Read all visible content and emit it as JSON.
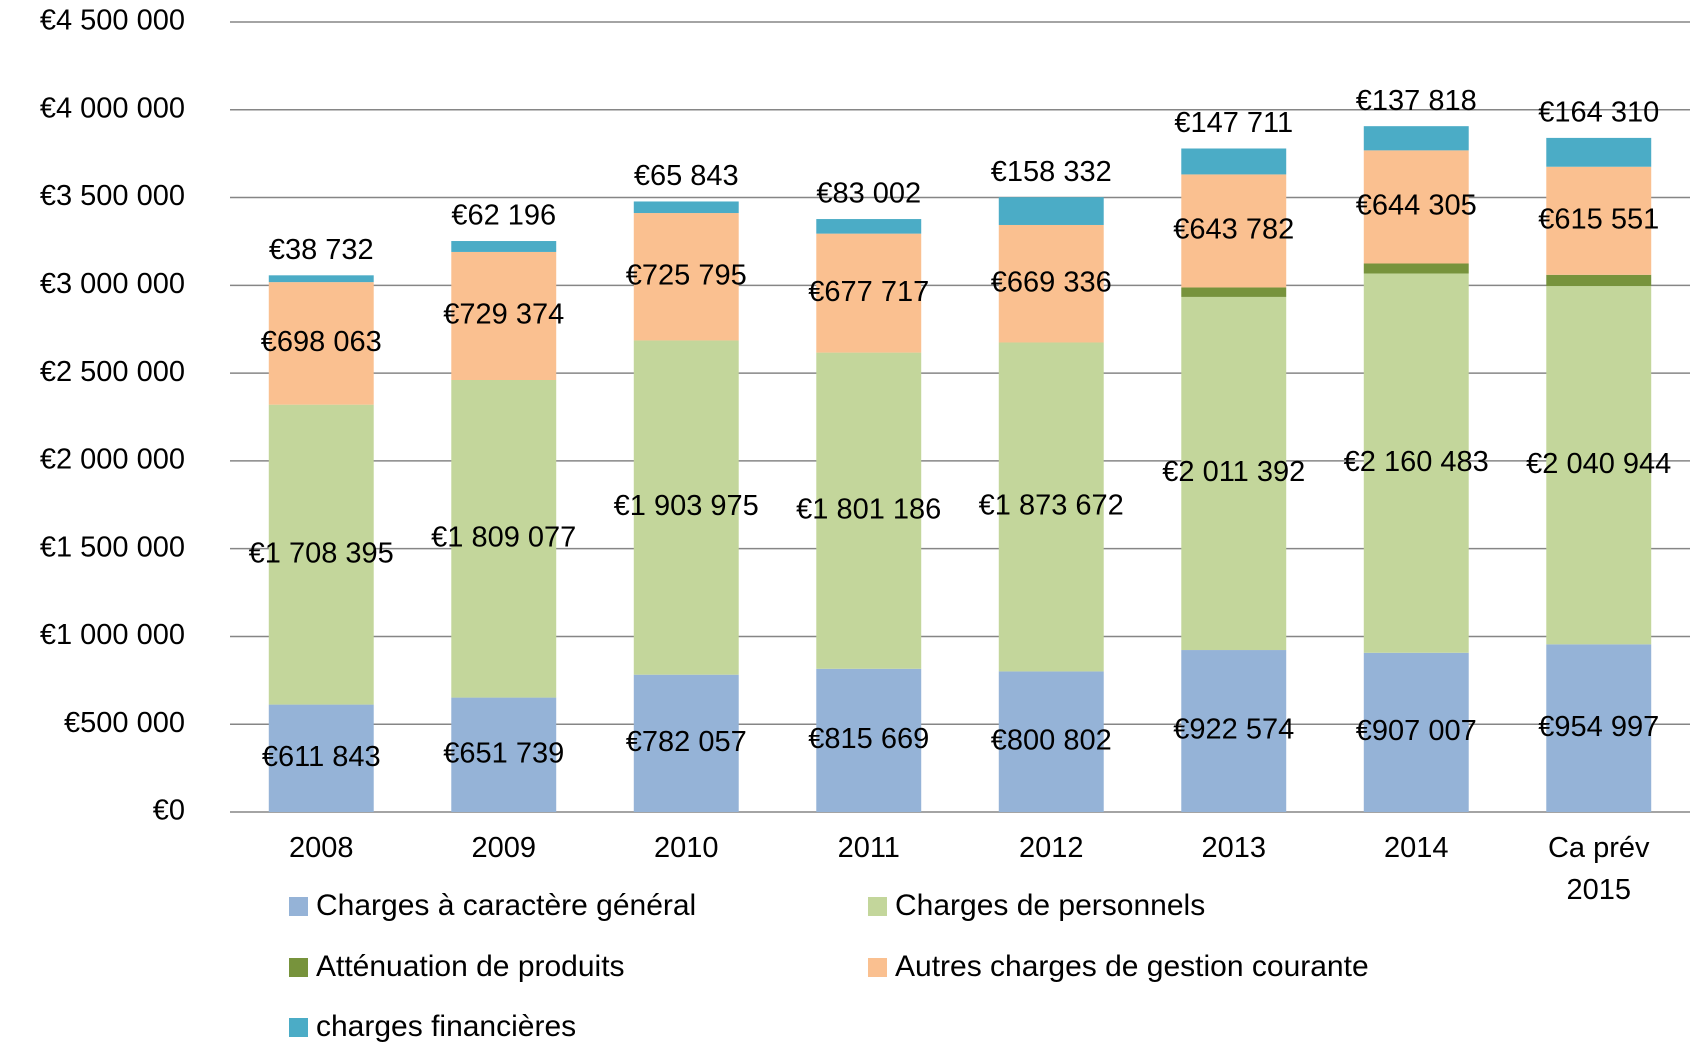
{
  "chart_data": {
    "type": "stacked_bar",
    "categories": [
      "2008",
      "2009",
      "2010",
      "2011",
      "2012",
      "2013",
      "2014",
      "Ca prév 2015"
    ],
    "series": [
      {
        "name": "Charges à caractère général",
        "color": "#95b3d7",
        "values": [
          611843,
          651739,
          782057,
          815669,
          800802,
          922574,
          907007,
          954997
        ],
        "value_labels": [
          "€611 843",
          "€651 739",
          "€782 057",
          "€815 669",
          "€800 802",
          "€922 574",
          "€907 007",
          "€954 997"
        ]
      },
      {
        "name": "Charges de personnels",
        "color": "#c3d69b",
        "values": [
          1708395,
          1809077,
          1903975,
          1801186,
          1873672,
          2011392,
          2160483,
          2040944
        ],
        "value_labels": [
          "€1 708 395",
          "€1 809 077",
          "€1 903 975",
          "€1 801 186",
          "€1 873 672",
          "€2 011 392",
          "€2 160 483",
          "€2 040 944"
        ]
      },
      {
        "name": "Atténuation de produits",
        "color": "#77933c",
        "values": [
          0,
          0,
          0,
          0,
          0,
          54000,
          57000,
          64000
        ]
      },
      {
        "name": "Autres charges de gestion courante",
        "color": "#fac090",
        "values": [
          698063,
          729374,
          725795,
          677717,
          669336,
          643782,
          644305,
          615551
        ],
        "value_labels": [
          "€698 063",
          "€729 374",
          "€725 795",
          "€677 717",
          "€669 336",
          "€643 782",
          "€644 305",
          "€615 551"
        ]
      },
      {
        "name": "charges financières",
        "color": "#4bacc6",
        "values": [
          38732,
          62196,
          65843,
          83002,
          158332,
          147711,
          137818,
          164310
        ],
        "value_labels": [
          "€38 732",
          "€62 196",
          "€65 843",
          "€83 002",
          "€158 332",
          "€147 711",
          "€137 818",
          "€164 310"
        ]
      }
    ],
    "ylim": [
      0,
      4500000
    ],
    "yticks": [
      {
        "value": 0,
        "label": "€0"
      },
      {
        "value": 500000,
        "label": "€500 000"
      },
      {
        "value": 1000000,
        "label": "€1 000 000"
      },
      {
        "value": 1500000,
        "label": "€1 500 000"
      },
      {
        "value": 2000000,
        "label": "€2 000 000"
      },
      {
        "value": 2500000,
        "label": "€2 500 000"
      },
      {
        "value": 3000000,
        "label": "€3 000 000"
      },
      {
        "value": 3500000,
        "label": "€3 500 000"
      },
      {
        "value": 4000000,
        "label": "€4 000 000"
      },
      {
        "value": 4500000,
        "label": "€4 500 000"
      }
    ],
    "grid": true
  }
}
